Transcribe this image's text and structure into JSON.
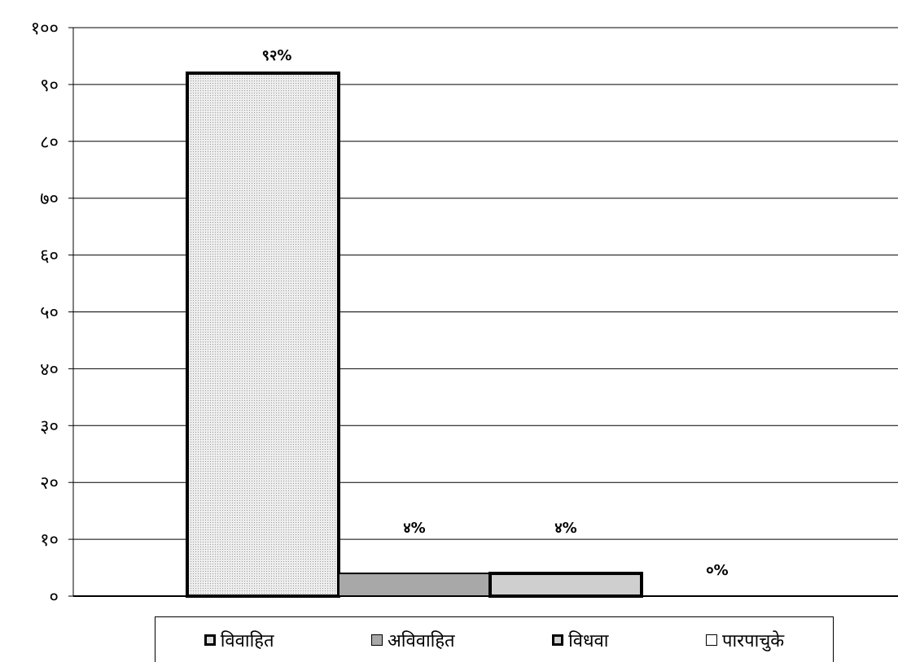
{
  "chart_data": {
    "type": "bar",
    "title": "",
    "xlabel": "",
    "ylabel": "",
    "ylim": [
      0,
      100
    ],
    "yticks": [
      0,
      10,
      20,
      30,
      40,
      50,
      60,
      70,
      80,
      90,
      100
    ],
    "ytick_labels": [
      "०",
      "१०",
      "२०",
      "३०",
      "४०",
      "५०",
      "६०",
      "७०",
      "८०",
      "९०",
      "१००"
    ],
    "grid": true,
    "legend_position": "bottom",
    "series": [
      {
        "name": "विवाहित",
        "value": 92,
        "data_label": "९२%",
        "color": "#dcdcdc",
        "border": "thick"
      },
      {
        "name": "अविवाहित",
        "value": 4,
        "data_label": "४%",
        "color": "#a8a8a8",
        "border": "thin"
      },
      {
        "name": "विधवा",
        "value": 4,
        "data_label": "४%",
        "color": "#cfcfcf",
        "border": "thick"
      },
      {
        "name": "पारपाचुके",
        "value": 0,
        "data_label": "०%",
        "color": "#ffffff",
        "border": "thin"
      }
    ]
  }
}
